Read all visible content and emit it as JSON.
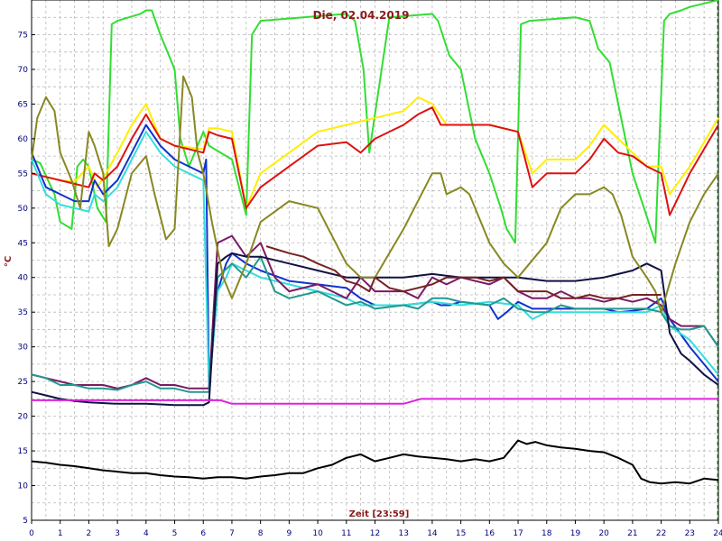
{
  "chart_data": {
    "type": "line",
    "title": "Die, 02.04.2019",
    "xlabel": "Zeit [23:59]",
    "ylabel": "°C",
    "xlim": [
      0,
      24
    ],
    "ylim": [
      5,
      80
    ],
    "x_ticks": [
      "0",
      "1",
      "2",
      "3",
      "4",
      "5",
      "6",
      "7",
      "8",
      "9",
      "10",
      "11",
      "12",
      "13",
      "14",
      "15",
      "16",
      "17",
      "18",
      "19",
      "20",
      "21",
      "22",
      "23",
      "24"
    ],
    "y_ticks": [
      "5",
      "10",
      "15",
      "20",
      "25",
      "30",
      "35",
      "40",
      "45",
      "50",
      "55",
      "60",
      "65",
      "70",
      "75"
    ],
    "grid": true,
    "legend": "none",
    "series": [
      {
        "color": "#33dd33",
        "x": [
          0,
          0.3,
          0.8,
          1.0,
          1.4,
          1.6,
          1.8,
          2.0,
          2.3,
          2.6,
          2.8,
          3.0,
          3.4,
          3.8,
          4.0,
          4.2,
          4.5,
          5.0,
          5.2,
          5.5,
          5.8,
          6.0,
          6.2,
          7.0,
          7.5,
          7.7,
          8.0,
          11.0,
          11.3,
          11.6,
          11.8,
          12.5,
          14.0,
          14.2,
          14.6,
          15.0,
          15.5,
          16.0,
          16.4,
          16.6,
          16.9,
          17.1,
          17.4,
          19.0,
          19.5,
          19.8,
          20.2,
          21.0,
          21.4,
          21.8,
          22.1,
          22.3,
          22.7,
          23.0,
          24.0
        ],
        "y": [
          57,
          56.5,
          52,
          48,
          47,
          56,
          57,
          56,
          50,
          48,
          76.5,
          77,
          77.5,
          78,
          78.5,
          78.5,
          75,
          70,
          60,
          56,
          59,
          61,
          59,
          57,
          49,
          75,
          77,
          78,
          77,
          70,
          58,
          77.5,
          78,
          77,
          72,
          70,
          60,
          55,
          50,
          47,
          45,
          76.5,
          77,
          77.5,
          77,
          73,
          71,
          55,
          50,
          45,
          77,
          78,
          78.5,
          79,
          80
        ]
      },
      {
        "color": "#ffee00",
        "x": [
          0,
          0.5,
          1.0,
          1.5,
          2.0,
          2.3,
          2.6,
          3.0,
          3.5,
          4.0,
          4.5,
          5.0,
          6.0,
          6.2,
          6.5,
          7.0,
          7.5,
          8.0,
          9.0,
          10.0,
          11.0,
          11.5,
          12.0,
          13.0,
          13.5,
          14.0,
          14.5,
          15.0,
          16.0,
          17.0,
          17.5,
          18.0,
          19.0,
          19.5,
          20.0,
          20.5,
          21.0,
          21.5,
          22.0,
          22.3,
          23.0,
          24.0
        ],
        "y": [
          55,
          54.5,
          54,
          53.8,
          56,
          53,
          55,
          58,
          62,
          65,
          60,
          59,
          58.5,
          61.5,
          61.5,
          61,
          50,
          55,
          58,
          61,
          62,
          62.5,
          63,
          64,
          66,
          65,
          62,
          62,
          62,
          61,
          55,
          57,
          57,
          59,
          62,
          60,
          58,
          56,
          56,
          52,
          56,
          63
        ]
      },
      {
        "color": "#dd1111",
        "x": [
          0,
          0.5,
          1.0,
          1.5,
          2.0,
          2.2,
          2.5,
          3.0,
          3.5,
          4.0,
          4.5,
          5.0,
          6.0,
          6.2,
          6.5,
          7.0,
          7.5,
          8.0,
          9.0,
          10.0,
          11.0,
          11.5,
          12.0,
          13.0,
          13.5,
          14.0,
          14.3,
          15.0,
          16.0,
          17.0,
          17.5,
          18.0,
          19.0,
          19.5,
          20.0,
          20.5,
          21.0,
          21.5,
          22.0,
          22.3,
          23.0,
          24.0
        ],
        "y": [
          55,
          54.5,
          54,
          53.5,
          53,
          55,
          54,
          56,
          60,
          63.5,
          60,
          59,
          58,
          61,
          60.5,
          60,
          50,
          53,
          56,
          59,
          59.5,
          58,
          60,
          62,
          63.5,
          64.5,
          62,
          62,
          62,
          61,
          53,
          55,
          55,
          57,
          60,
          58,
          57.5,
          56,
          55,
          49,
          55,
          62
        ]
      },
      {
        "color": "#1133cc",
        "x": [
          0,
          0.5,
          1.0,
          1.5,
          2.0,
          2.2,
          2.5,
          3.0,
          3.5,
          4.0,
          4.5,
          5.0,
          5.5,
          6.0,
          6.1,
          6.2,
          6.5,
          6.8,
          7.0,
          7.5,
          8.0,
          9.0,
          10.0,
          11.0,
          11.5,
          12.0,
          13.0,
          14.0,
          14.3,
          14.6,
          15.0,
          16.0,
          16.3,
          16.6,
          17.0,
          17.5,
          18.0,
          19.0,
          19.5,
          20.0,
          20.5,
          21.0,
          21.5,
          22.0,
          22.3,
          23.0,
          24.0
        ],
        "y": [
          58,
          53,
          52,
          51,
          51,
          54,
          52,
          54,
          58,
          62,
          59,
          57,
          56,
          55,
          57,
          24,
          38,
          42,
          43.5,
          42,
          41,
          39.5,
          39,
          38.5,
          37,
          36,
          36,
          36.5,
          36,
          36,
          36.5,
          36,
          34,
          35,
          36.5,
          35.5,
          35.5,
          35.5,
          35.5,
          35.5,
          35,
          35.2,
          35.5,
          37,
          34,
          30,
          25
        ]
      },
      {
        "color": "#33dddd",
        "x": [
          0,
          0.5,
          1.0,
          1.5,
          2.0,
          2.2,
          2.5,
          3.0,
          3.5,
          4.0,
          4.5,
          5.0,
          5.5,
          6.0,
          6.2,
          6.5,
          6.8,
          7.0,
          7.5,
          8.0,
          9.0,
          10.0,
          11.0,
          11.5,
          12.0,
          13.0,
          14.0,
          15.0,
          16.0,
          17.0,
          17.5,
          18.0,
          19.0,
          19.5,
          20.0,
          20.5,
          21.0,
          21.5,
          22.0,
          22.3,
          23.0,
          24.0
        ],
        "y": [
          57,
          52,
          50.5,
          50,
          49.5,
          52,
          51,
          53,
          57,
          61,
          58,
          56,
          55,
          54,
          24,
          38,
          40,
          42,
          41,
          40,
          39,
          38,
          37,
          36,
          36,
          36,
          36.5,
          36,
          36.5,
          36,
          34,
          35,
          35,
          35,
          35,
          35,
          35,
          35,
          36,
          33,
          31,
          26
        ]
      },
      {
        "color": "#7a1a66",
        "x": [
          0,
          0.5,
          1.0,
          1.5,
          2.0,
          2.5,
          3.0,
          3.5,
          4.0,
          4.5,
          5.0,
          5.5,
          6.0,
          6.2,
          6.5,
          7.0,
          7.5,
          8.0,
          8.5,
          9.0,
          10.0,
          11.0,
          11.5,
          12.0,
          13.0,
          13.5,
          14.0,
          14.5,
          15.0,
          16.0,
          16.5,
          17.0,
          17.5,
          18.0,
          18.5,
          19.0,
          19.5,
          20.0,
          20.5,
          21.0,
          21.5,
          22.0,
          22.3,
          22.7,
          23.0,
          23.5,
          24.0
        ],
        "y": [
          26,
          25.5,
          25,
          24.5,
          24.5,
          24.5,
          24,
          24.5,
          25.5,
          24.5,
          24.5,
          24,
          24,
          24,
          45,
          46,
          43,
          45,
          40,
          38,
          39,
          37,
          40,
          38,
          38,
          37,
          40,
          39,
          40,
          39,
          40,
          38,
          37,
          37,
          38,
          37,
          37,
          36.5,
          37,
          36.5,
          37,
          36,
          34,
          33,
          33,
          33,
          30
        ]
      },
      {
        "color": "#22998e",
        "x": [
          0,
          0.5,
          1.0,
          1.5,
          2.0,
          2.5,
          3.0,
          3.5,
          4.0,
          4.5,
          5.0,
          5.5,
          6.0,
          6.2,
          6.5,
          7.0,
          7.5,
          8.0,
          8.5,
          9.0,
          10.0,
          11.0,
          11.5,
          12.0,
          13.0,
          13.5,
          14.0,
          14.5,
          15.0,
          16.0,
          16.5,
          17.0,
          17.5,
          18.0,
          18.5,
          19.0,
          19.5,
          20.0,
          20.5,
          21.0,
          21.5,
          22.0,
          22.3,
          22.7,
          23.0,
          23.5,
          24.0
        ],
        "y": [
          26,
          25.5,
          24.5,
          24.5,
          24,
          24,
          23.8,
          24.5,
          25,
          24,
          24,
          23.5,
          23.5,
          23.5,
          40,
          42,
          40,
          43,
          38,
          37,
          38,
          36,
          36.5,
          35.5,
          36,
          35.5,
          37,
          37,
          36.5,
          36,
          37,
          35.5,
          35,
          35,
          36,
          35.5,
          35.5,
          35.5,
          35.5,
          35.5,
          35.5,
          35,
          33,
          32.5,
          32.5,
          33,
          30
        ]
      },
      {
        "color": "#111144",
        "x": [
          0,
          0.5,
          1.0,
          1.5,
          2.0,
          3.0,
          4.0,
          5.0,
          6.0,
          6.2,
          6.5,
          6.8,
          7.0,
          7.5,
          8.0,
          9.0,
          10.0,
          11.0,
          12.0,
          13.0,
          14.0,
          15.0,
          16.0,
          17.0,
          18.0,
          19.0,
          20.0,
          20.5,
          21.0,
          21.5,
          22.0,
          22.3,
          22.7,
          23.0,
          23.5,
          24.0
        ],
        "y": [
          23.5,
          23,
          22.5,
          22.2,
          22,
          21.8,
          21.8,
          21.6,
          21.6,
          22,
          42,
          43,
          43.5,
          43,
          43,
          42,
          41,
          40,
          40,
          40,
          40.5,
          40,
          40,
          40,
          39.5,
          39.5,
          40,
          40.5,
          41,
          42,
          41,
          32,
          29,
          28,
          26,
          24.5
        ]
      },
      {
        "color": "#dd22dd",
        "x": [
          0,
          1.0,
          2.0,
          3.0,
          4.0,
          5.0,
          6.0,
          6.6,
          7.0,
          8.0,
          9.0,
          10.0,
          11.0,
          11.5,
          12.0,
          13.0,
          13.6,
          14.0,
          15.0,
          16.0,
          17.0,
          18.0,
          19.0,
          20.0,
          21.0,
          22.0,
          23.0,
          24.0
        ],
        "y": [
          22.3,
          22.3,
          22.3,
          22.3,
          22.3,
          22.3,
          22.3,
          22.3,
          21.8,
          21.8,
          21.8,
          21.8,
          21.8,
          21.8,
          21.8,
          21.8,
          22.5,
          22.5,
          22.5,
          22.5,
          22.5,
          22.5,
          22.5,
          22.5,
          22.5,
          22.5,
          22.5,
          22.5
        ]
      },
      {
        "color": "#888822",
        "x": [
          0,
          0.2,
          0.5,
          0.8,
          1.0,
          1.4,
          1.7,
          2.0,
          2.2,
          2.5,
          2.7,
          3.0,
          3.5,
          4.0,
          4.3,
          4.7,
          5.0,
          5.3,
          5.6,
          5.8,
          6.0,
          6.3,
          6.7,
          7.0,
          7.5,
          8.0,
          9.0,
          10.0,
          10.5,
          11.0,
          11.5,
          12.0,
          13.0,
          14.0,
          14.3,
          14.5,
          15.0,
          15.3,
          16.0,
          16.5,
          17.0,
          18.0,
          18.5,
          19.0,
          19.5,
          20.0,
          20.3,
          20.6,
          21.0,
          21.5,
          21.8,
          22.0,
          22.5,
          23.0,
          23.5,
          24.0
        ],
        "y": [
          57,
          63,
          66,
          64,
          58,
          54,
          50,
          61,
          59,
          55,
          44.5,
          47,
          55,
          57.5,
          52,
          45.5,
          47,
          69,
          66,
          58,
          55,
          48,
          40,
          37,
          42,
          48,
          51,
          50,
          46,
          42,
          40,
          40,
          47,
          55,
          55,
          52,
          53,
          52,
          45,
          42,
          40,
          45,
          50,
          52,
          52,
          53,
          52,
          49,
          43,
          40,
          38,
          35,
          42,
          48,
          52,
          55
        ]
      },
      {
        "color": "#772222",
        "x": [
          8.2,
          8.6,
          9.0,
          9.5,
          10.0,
          10.6,
          11.0,
          11.4,
          11.8,
          12.0,
          12.5,
          13.0,
          13.5,
          14.0,
          14.5,
          15.0,
          15.5,
          16.0,
          16.5,
          17.0,
          17.5,
          18.0,
          18.5,
          19.0,
          19.5,
          20.0,
          20.5,
          21.0,
          21.5,
          22.0
        ],
        "y": [
          44.5,
          44,
          43.5,
          43,
          42,
          41,
          39.5,
          39,
          38,
          40,
          38.5,
          38,
          38.5,
          39,
          40,
          40,
          40,
          39.5,
          40,
          38,
          38,
          38,
          37,
          37,
          37.5,
          37,
          37,
          37.5,
          37.5,
          37.5
        ]
      },
      {
        "color": "#000000",
        "x": [
          0,
          0.5,
          1.0,
          1.5,
          2.0,
          2.5,
          3.0,
          3.5,
          4.0,
          4.5,
          5.0,
          5.5,
          6.0,
          6.5,
          7.0,
          7.5,
          8.0,
          8.5,
          9.0,
          9.5,
          10.0,
          10.5,
          11.0,
          11.5,
          12.0,
          12.5,
          13.0,
          13.5,
          14.0,
          14.5,
          15.0,
          15.5,
          16.0,
          16.5,
          17.0,
          17.3,
          17.6,
          18.0,
          18.5,
          19.0,
          19.5,
          20.0,
          20.5,
          21.0,
          21.3,
          21.6,
          22.0,
          22.5,
          23.0,
          23.5,
          24.0
        ],
        "y": [
          13.5,
          13.3,
          13.0,
          12.8,
          12.5,
          12.2,
          12.0,
          11.8,
          11.8,
          11.5,
          11.3,
          11.2,
          11.0,
          11.2,
          11.2,
          11.0,
          11.3,
          11.5,
          11.8,
          11.8,
          12.5,
          13.0,
          14.0,
          14.5,
          13.5,
          14.0,
          14.5,
          14.2,
          14.0,
          13.8,
          13.5,
          13.8,
          13.5,
          14.0,
          16.5,
          16.0,
          16.3,
          15.8,
          15.5,
          15.3,
          15.0,
          14.8,
          14.0,
          13.0,
          11.0,
          10.5,
          10.3,
          10.5,
          10.3,
          11.0,
          10.8
        ]
      }
    ]
  }
}
